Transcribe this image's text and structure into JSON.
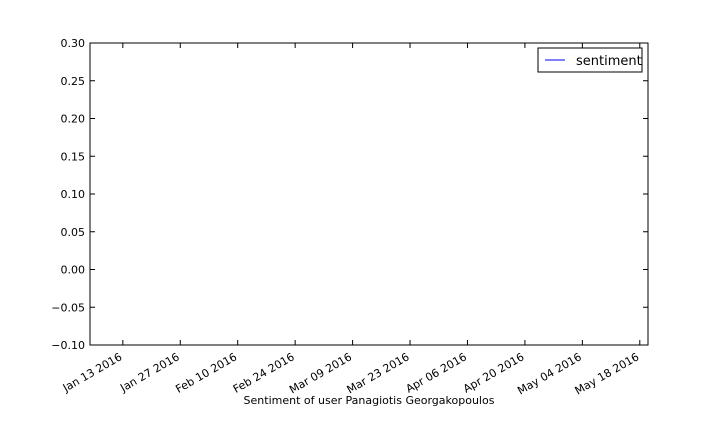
{
  "chart_data": {
    "type": "line",
    "title": "",
    "xlabel": "Sentiment of user Panagiotis Georgakopoulos",
    "ylabel": "",
    "x_tick_labels": [
      "Jan 13 2016",
      "Jan 27 2016",
      "Feb 10 2016",
      "Feb 24 2016",
      "Mar 09 2016",
      "Mar 23 2016",
      "Apr 06 2016",
      "Apr 20 2016",
      "May 04 2016",
      "May 18 2016"
    ],
    "x_range": [
      "2016-01-05",
      "2016-05-20"
    ],
    "y_tick_labels": [
      "0.30",
      "0.25",
      "0.20",
      "0.15",
      "0.10",
      "0.05",
      "0.00",
      "−0.05",
      "−0.10"
    ],
    "ylim": [
      -0.1,
      0.3
    ],
    "grid": false,
    "legend_position": "top-right",
    "series": [
      {
        "name": "sentiment",
        "color": "#0000ff",
        "points": []
      }
    ]
  }
}
